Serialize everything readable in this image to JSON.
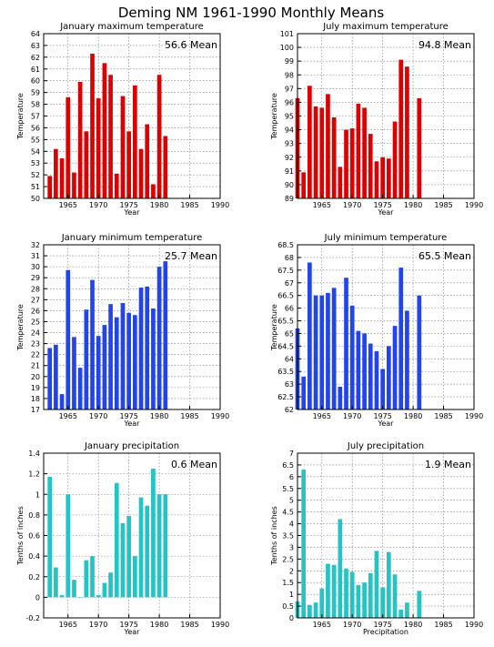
{
  "page": {
    "title": "Deming NM  1961-1990 Monthly Means"
  },
  "chart_data": [
    {
      "type": "bar",
      "title": "January maximum temperature",
      "xlabel": "Year",
      "ylabel": "Temperature",
      "mean_label": "56.6 Mean",
      "color": "#dd0000",
      "xlim": [
        1961,
        1990
      ],
      "ylim": [
        50,
        64
      ],
      "yticks": [
        50,
        51,
        52,
        53,
        54,
        55,
        56,
        57,
        58,
        59,
        60,
        61,
        62,
        63,
        64
      ],
      "yticklabels": [
        "50",
        "51",
        "52",
        "53",
        "54",
        "55",
        "56",
        "57",
        "58",
        "59",
        "60",
        "61",
        "62",
        "63",
        "64"
      ],
      "xticks": [
        1965,
        1970,
        1975,
        1980,
        1985,
        1990
      ],
      "xticklabels": [
        "1965",
        "1970",
        "1975",
        "1980",
        "1985",
        "1990"
      ],
      "grid": true,
      "x": [
        1962,
        1963,
        1964,
        1965,
        1966,
        1967,
        1968,
        1969,
        1970,
        1971,
        1972,
        1973,
        1974,
        1975,
        1976,
        1977,
        1978,
        1979,
        1980,
        1981
      ],
      "values": [
        51.9,
        54.2,
        53.4,
        58.6,
        52.2,
        59.9,
        55.7,
        62.3,
        58.5,
        61.5,
        60.5,
        52.1,
        58.7,
        55.7,
        59.6,
        54.2,
        56.3,
        51.2,
        60.5,
        55.3
      ]
    },
    {
      "type": "bar",
      "title": "July maximum temperature",
      "xlabel": "Year",
      "ylabel": "Temperature",
      "mean_label": "94.8 Mean",
      "color": "#dd0000",
      "xlim": [
        1961,
        1990
      ],
      "ylim": [
        89,
        101
      ],
      "yticks": [
        89,
        90,
        91,
        92,
        93,
        94,
        95,
        96,
        97,
        98,
        99,
        100,
        101
      ],
      "yticklabels": [
        "89",
        "90",
        "91",
        "92",
        "93",
        "94",
        "95",
        "96",
        "97",
        "98",
        "99",
        "100",
        "101"
      ],
      "xticks": [
        1965,
        1970,
        1975,
        1980,
        1985,
        1990
      ],
      "xticklabels": [
        "1965",
        "1970",
        "1975",
        "1980",
        "1985",
        "1990"
      ],
      "grid": true,
      "x": [
        1961,
        1962,
        1963,
        1964,
        1965,
        1966,
        1967,
        1968,
        1969,
        1970,
        1971,
        1972,
        1973,
        1974,
        1975,
        1976,
        1977,
        1978,
        1979,
        1981
      ],
      "values": [
        96.3,
        90.9,
        97.2,
        95.7,
        95.6,
        96.6,
        94.9,
        91.3,
        94.0,
        94.1,
        95.9,
        95.6,
        93.7,
        91.7,
        92.0,
        91.9,
        94.6,
        99.1,
        98.6,
        96.3
      ]
    },
    {
      "type": "bar",
      "title": "January minimum temperature",
      "xlabel": "Year",
      "ylabel": "Temperature",
      "mean_label": "25.7 Mean",
      "color": "#2244ee",
      "xlim": [
        1961,
        1990
      ],
      "ylim": [
        17,
        32
      ],
      "yticks": [
        17,
        18,
        19,
        20,
        21,
        22,
        23,
        24,
        25,
        26,
        27,
        28,
        29,
        30,
        31,
        32
      ],
      "yticklabels": [
        "17",
        "18",
        "19",
        "20",
        "21",
        "22",
        "23",
        "24",
        "25",
        "26",
        "27",
        "28",
        "29",
        "30",
        "31",
        "32"
      ],
      "xticks": [
        1965,
        1970,
        1975,
        1980,
        1985,
        1990
      ],
      "xticklabels": [
        "1965",
        "1970",
        "1975",
        "1980",
        "1985",
        "1990"
      ],
      "grid": true,
      "x": [
        1962,
        1963,
        1964,
        1965,
        1966,
        1967,
        1968,
        1969,
        1970,
        1971,
        1972,
        1973,
        1974,
        1975,
        1976,
        1977,
        1978,
        1979,
        1980,
        1981
      ],
      "values": [
        22.6,
        22.9,
        18.4,
        29.7,
        23.6,
        20.8,
        26.1,
        28.8,
        23.7,
        24.7,
        26.6,
        25.4,
        26.7,
        25.8,
        25.6,
        28.1,
        28.2,
        26.2,
        30.0,
        30.5
      ]
    },
    {
      "type": "bar",
      "title": "July minimum temperature",
      "xlabel": "Year",
      "ylabel": "Temperature",
      "mean_label": "65.5 Mean",
      "color": "#2244ee",
      "xlim": [
        1961,
        1990
      ],
      "ylim": [
        62,
        68.5
      ],
      "yticks": [
        62,
        62.5,
        63,
        63.5,
        64,
        64.5,
        65,
        65.5,
        66,
        66.5,
        67,
        67.5,
        68,
        68.5
      ],
      "yticklabels": [
        "62",
        "62.5",
        "63",
        "63.5",
        "64",
        "64.5",
        "65",
        "65.5",
        "66",
        "66.5",
        "67",
        "67.5",
        "68",
        "68.5"
      ],
      "xticks": [
        1965,
        1970,
        1975,
        1980,
        1985,
        1990
      ],
      "xticklabels": [
        "1965",
        "1970",
        "1975",
        "1980",
        "1985",
        "1990"
      ],
      "grid": true,
      "x": [
        1961,
        1962,
        1963,
        1964,
        1965,
        1966,
        1967,
        1968,
        1969,
        1970,
        1971,
        1972,
        1973,
        1974,
        1975,
        1976,
        1977,
        1978,
        1979,
        1981
      ],
      "values": [
        65.2,
        63.3,
        67.8,
        66.5,
        66.5,
        66.6,
        66.8,
        62.9,
        67.2,
        66.1,
        65.1,
        65.0,
        64.6,
        64.3,
        63.6,
        64.5,
        65.3,
        67.6,
        65.9,
        66.5
      ]
    },
    {
      "type": "bar",
      "title": "January precipitation",
      "xlabel": "Year",
      "ylabel": "Tenths of inches",
      "mean_label": "0.6 Mean",
      "color": "#22c4c4",
      "xlim": [
        1961,
        1990
      ],
      "ylim": [
        -0.2,
        1.4
      ],
      "yticks": [
        -0.2,
        0,
        0.2,
        0.4,
        0.6,
        0.8,
        1,
        1.2,
        1.4
      ],
      "yticklabels": [
        "-0.2",
        "0",
        "0.2",
        "0.4",
        "0.6",
        "0.8",
        "1",
        "1.2",
        "1.4"
      ],
      "xticks": [
        1965,
        1970,
        1975,
        1980,
        1985,
        1990
      ],
      "xticklabels": [
        "1965",
        "1970",
        "1975",
        "1980",
        "1985",
        "1990"
      ],
      "grid": true,
      "x": [
        1962,
        1963,
        1964,
        1965,
        1966,
        1967,
        1968,
        1969,
        1970,
        1971,
        1972,
        1973,
        1974,
        1975,
        1976,
        1977,
        1978,
        1979,
        1980,
        1981
      ],
      "values": [
        1.17,
        0.29,
        0.02,
        1.0,
        0.17,
        0.0,
        0.36,
        0.4,
        0.02,
        0.14,
        0.24,
        1.11,
        0.72,
        0.79,
        0.4,
        0.97,
        0.89,
        1.25,
        1.0,
        1.0
      ]
    },
    {
      "type": "bar",
      "title": "July precipitation",
      "xlabel": "Precipitation",
      "ylabel": "Tenths of inches",
      "mean_label": "1.9 Mean",
      "color": "#22c4c4",
      "xlim": [
        1961,
        1990
      ],
      "ylim": [
        0,
        7
      ],
      "yticks": [
        0,
        0.5,
        1,
        1.5,
        2,
        2.5,
        3,
        3.5,
        4,
        4.5,
        5,
        5.5,
        6,
        6.5,
        7
      ],
      "yticklabels": [
        "0",
        "0.5",
        "1",
        "1.5",
        "2",
        "2.5",
        "3",
        "3.5",
        "4",
        "4.5",
        "5",
        "5.5",
        "6",
        "6.5",
        "7"
      ],
      "xticks": [
        1965,
        1970,
        1975,
        1980,
        1985,
        1990
      ],
      "xticklabels": [
        "1965",
        "1970",
        "1975",
        "1980",
        "1985",
        "1990"
      ],
      "grid": true,
      "x": [
        1961,
        1962,
        1963,
        1964,
        1965,
        1966,
        1967,
        1968,
        1969,
        1970,
        1971,
        1972,
        1973,
        1974,
        1975,
        1976,
        1977,
        1978,
        1979,
        1981
      ],
      "values": [
        0.7,
        6.3,
        0.55,
        0.65,
        1.25,
        2.3,
        2.25,
        4.2,
        2.1,
        1.95,
        1.4,
        1.5,
        1.9,
        2.85,
        1.3,
        2.8,
        1.85,
        0.35,
        0.65,
        1.15
      ]
    }
  ]
}
